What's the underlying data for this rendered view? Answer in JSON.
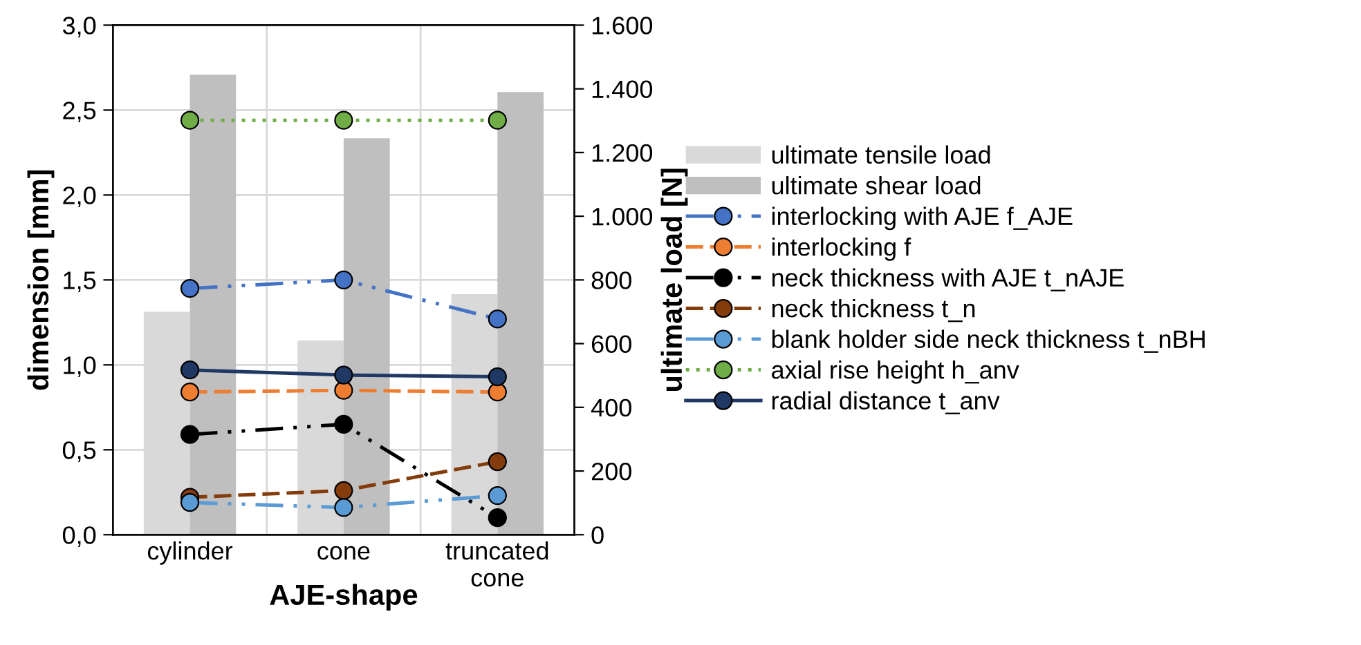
{
  "chart_data": {
    "type": "line",
    "xlabel": "AJE-shape",
    "ylabel": "dimension [mm]",
    "y2label": "ultimate load [N]",
    "categories": [
      "cylinder",
      "cone",
      "truncated\ncone"
    ],
    "ylim": [
      0,
      3.0
    ],
    "yticks": [
      {
        "value": 0,
        "label": "0,0"
      },
      {
        "value": 0.5,
        "label": "0,5"
      },
      {
        "value": 1.0,
        "label": "1,0"
      },
      {
        "value": 1.5,
        "label": "1,5"
      },
      {
        "value": 2.0,
        "label": "2,0"
      },
      {
        "value": 2.5,
        "label": "2,5"
      },
      {
        "value": 3.0,
        "label": "3,0"
      }
    ],
    "y2lim": [
      0,
      1600
    ],
    "y2ticks": [
      0,
      200,
      400,
      600,
      800,
      {
        "value": 1000,
        "label": "1.000"
      },
      {
        "value": 1200,
        "label": "1.200"
      },
      {
        "value": 1400,
        "label": "1.400"
      },
      {
        "value": 1600,
        "label": "1.600"
      }
    ],
    "grid": true,
    "legend": "right",
    "marker": "circle",
    "series": [
      {
        "name": "ultimate tensile load",
        "type": "bar",
        "axis": "y2",
        "color": "#d9d9d9",
        "values": [
          700,
          610,
          755
        ]
      },
      {
        "name": "ultimate shear load",
        "type": "bar",
        "axis": "y2",
        "color": "#bfbfbf",
        "values": [
          1445,
          1245,
          1390
        ]
      },
      {
        "name": "interlocking with AJE f_AJE",
        "color": "#4472c4",
        "line_style": "dashdot",
        "values": [
          1.45,
          1.5,
          1.27
        ]
      },
      {
        "name": "interlocking f",
        "color": "#ed7d31",
        "line_style": "dashed",
        "values": [
          0.84,
          0.85,
          0.84
        ]
      },
      {
        "name": "neck thickness with AJE t_nAJE",
        "color": "#000000",
        "line_style": "dashdot",
        "values": [
          0.59,
          0.65,
          0.1
        ]
      },
      {
        "name": "neck thickness t_n",
        "color": "#843c0c",
        "line_style": "dashed",
        "values": [
          0.22,
          0.26,
          0.43
        ]
      },
      {
        "name": "blank holder side neck thickness t_nBH",
        "color": "#5b9bd5",
        "line_style": "dashdot",
        "values": [
          0.19,
          0.16,
          0.23
        ]
      },
      {
        "name": "axial rise height h_anv",
        "color": "#70ad47",
        "line_style": "dotted",
        "values": [
          2.44,
          2.44,
          2.44
        ]
      },
      {
        "name": "radial distance t_anv",
        "color": "#203864",
        "line_style": "solid",
        "values": [
          0.97,
          0.94,
          0.93
        ]
      }
    ]
  }
}
